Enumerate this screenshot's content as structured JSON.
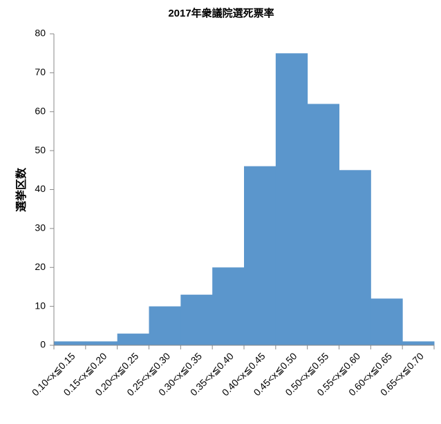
{
  "chart_data": {
    "type": "bar",
    "title": "2017年衆議院選死票率",
    "y_label": "選挙区数",
    "categories": [
      "0.10<x≦0.15",
      "0.15<x≦0.20",
      "0.20<x≦0.25",
      "0.25<x≦0.30",
      "0.30<x≦0.35",
      "0.35<x≦0.40",
      "0.40<x≦0.45",
      "0.45<x≦0.50",
      "0.50<x≦0.55",
      "0.55<x≦0.60",
      "0.60<x≦0.65",
      "0.65<x≦0.70"
    ],
    "values": [
      1,
      1,
      3,
      10,
      13,
      20,
      46,
      75,
      62,
      45,
      12,
      1
    ],
    "color": "#5b96cc",
    "ylim": [
      0,
      80
    ],
    "yticks": [
      0,
      10,
      20,
      30,
      40,
      50,
      60,
      70,
      80
    ],
    "grid": false
  }
}
